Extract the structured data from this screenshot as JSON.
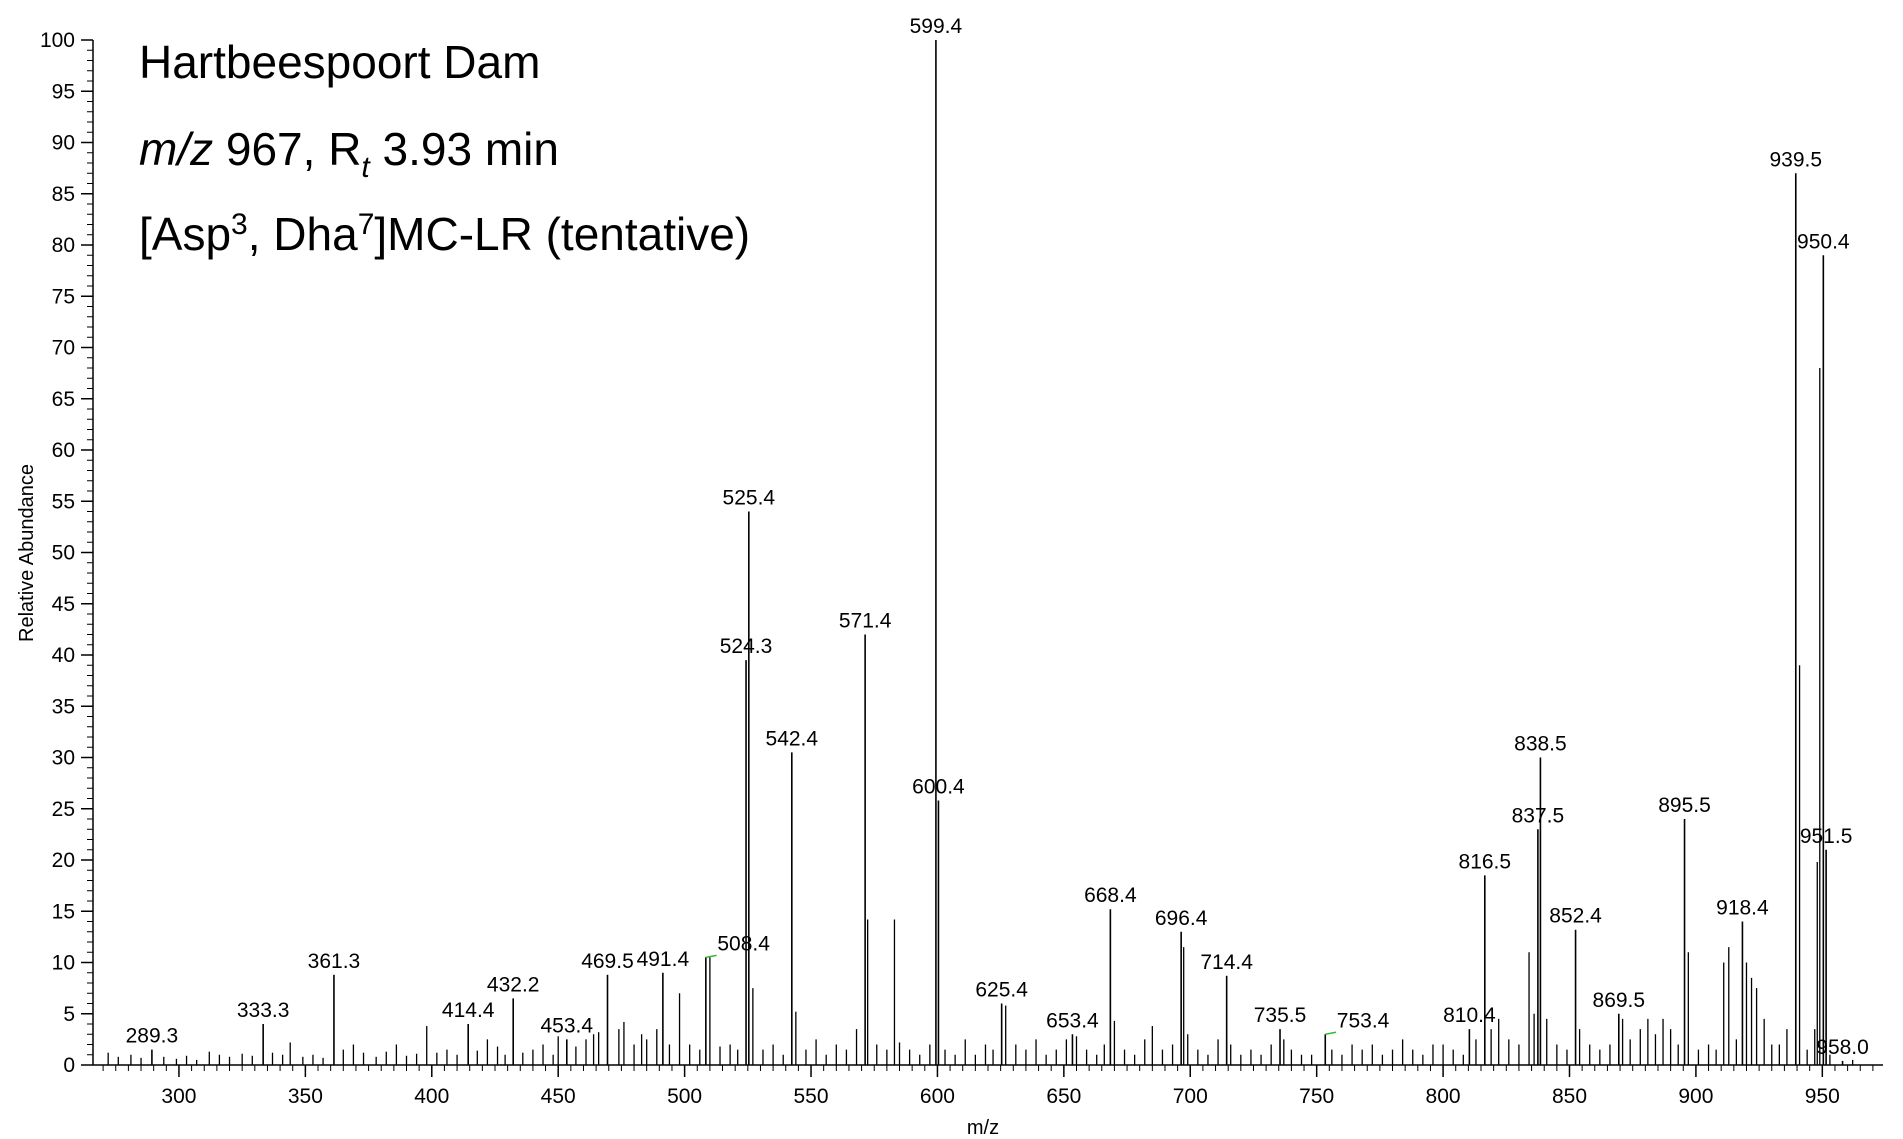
{
  "chart_data": {
    "type": "bar",
    "title_lines": {
      "line1": "Hartbeespoort Dam",
      "line2": {
        "mz_label": "m/z",
        "mz_value": " 967, R",
        "rt_sub": "t",
        "rt_value": " 3.93 min"
      },
      "line3": {
        "a": "[Asp",
        "a_sup": "3",
        "b": ", Dha",
        "b_sup": "7",
        "c": "]MC-LR (tentative)"
      }
    },
    "xlabel": "m/z",
    "ylabel": "Relative Abundance",
    "xlim": [
      266,
      974
    ],
    "ylim": [
      0,
      100
    ],
    "x_ticks": [
      300,
      350,
      400,
      450,
      500,
      550,
      600,
      650,
      700,
      750,
      800,
      850,
      900,
      950
    ],
    "y_ticks": [
      0,
      5,
      10,
      15,
      20,
      25,
      30,
      35,
      40,
      45,
      50,
      55,
      60,
      65,
      70,
      75,
      80,
      85,
      90,
      95,
      100
    ],
    "grid": false,
    "labeled_peaks": [
      {
        "mz": 289.3,
        "label": "289.3",
        "intensity": 1.5
      },
      {
        "mz": 333.3,
        "label": "333.3",
        "intensity": 4.0
      },
      {
        "mz": 361.3,
        "label": "361.3",
        "intensity": 8.8
      },
      {
        "mz": 414.4,
        "label": "414.4",
        "intensity": 4.0
      },
      {
        "mz": 432.2,
        "label": "432.2",
        "intensity": 6.5
      },
      {
        "mz": 453.4,
        "label": "453.4",
        "intensity": 2.5
      },
      {
        "mz": 469.5,
        "label": "469.5",
        "intensity": 8.8
      },
      {
        "mz": 491.4,
        "label": "491.4",
        "intensity": 9.0
      },
      {
        "mz": 508.4,
        "label": "508.4",
        "intensity": 10.5
      },
      {
        "mz": 524.3,
        "label": "524.3",
        "intensity": 39.5
      },
      {
        "mz": 525.4,
        "label": "525.4",
        "intensity": 54.0
      },
      {
        "mz": 542.4,
        "label": "542.4",
        "intensity": 30.5
      },
      {
        "mz": 571.4,
        "label": "571.4",
        "intensity": 42.0
      },
      {
        "mz": 599.4,
        "label": "599.4",
        "intensity": 100.0
      },
      {
        "mz": 600.4,
        "label": "600.4",
        "intensity": 25.8
      },
      {
        "mz": 625.4,
        "label": "625.4",
        "intensity": 6.0
      },
      {
        "mz": 653.4,
        "label": "653.4",
        "intensity": 3.0
      },
      {
        "mz": 668.4,
        "label": "668.4",
        "intensity": 15.2
      },
      {
        "mz": 696.4,
        "label": "696.4",
        "intensity": 13.0
      },
      {
        "mz": 714.4,
        "label": "714.4",
        "intensity": 8.7
      },
      {
        "mz": 735.5,
        "label": "735.5",
        "intensity": 3.5
      },
      {
        "mz": 753.4,
        "label": "753.4",
        "intensity": 3.0
      },
      {
        "mz": 810.4,
        "label": "810.4",
        "intensity": 3.5
      },
      {
        "mz": 816.5,
        "label": "816.5",
        "intensity": 18.5
      },
      {
        "mz": 837.5,
        "label": "837.5",
        "intensity": 23.0
      },
      {
        "mz": 838.5,
        "label": "838.5",
        "intensity": 30.0
      },
      {
        "mz": 852.4,
        "label": "852.4",
        "intensity": 13.2
      },
      {
        "mz": 869.5,
        "label": "869.5",
        "intensity": 5.0
      },
      {
        "mz": 895.5,
        "label": "895.5",
        "intensity": 24.0
      },
      {
        "mz": 918.4,
        "label": "918.4",
        "intensity": 14.0
      },
      {
        "mz": 939.5,
        "label": "939.5",
        "intensity": 87.0
      },
      {
        "mz": 950.4,
        "label": "950.4",
        "intensity": 79.0
      },
      {
        "mz": 951.5,
        "label": "951.5",
        "intensity": 21.0
      },
      {
        "mz": 958.0,
        "label": "958.0",
        "intensity": 0.4
      }
    ],
    "other_peaks": [
      {
        "mz": 272,
        "intensity": 1.2
      },
      {
        "mz": 276,
        "intensity": 0.8
      },
      {
        "mz": 281,
        "intensity": 1.0
      },
      {
        "mz": 285,
        "intensity": 0.7
      },
      {
        "mz": 294,
        "intensity": 0.8
      },
      {
        "mz": 299,
        "intensity": 0.6
      },
      {
        "mz": 303,
        "intensity": 0.9
      },
      {
        "mz": 307,
        "intensity": 0.5
      },
      {
        "mz": 312,
        "intensity": 1.3
      },
      {
        "mz": 316,
        "intensity": 1.0
      },
      {
        "mz": 320,
        "intensity": 0.8
      },
      {
        "mz": 325,
        "intensity": 1.1
      },
      {
        "mz": 329,
        "intensity": 0.9
      },
      {
        "mz": 337,
        "intensity": 1.2
      },
      {
        "mz": 341,
        "intensity": 1.0
      },
      {
        "mz": 344,
        "intensity": 2.2
      },
      {
        "mz": 349,
        "intensity": 0.8
      },
      {
        "mz": 353,
        "intensity": 1.0
      },
      {
        "mz": 357,
        "intensity": 0.7
      },
      {
        "mz": 365,
        "intensity": 1.5
      },
      {
        "mz": 369,
        "intensity": 2.0
      },
      {
        "mz": 373,
        "intensity": 1.2
      },
      {
        "mz": 378,
        "intensity": 0.8
      },
      {
        "mz": 382,
        "intensity": 1.3
      },
      {
        "mz": 386,
        "intensity": 2.0
      },
      {
        "mz": 390,
        "intensity": 0.9
      },
      {
        "mz": 394,
        "intensity": 1.1
      },
      {
        "mz": 398,
        "intensity": 3.8
      },
      {
        "mz": 402,
        "intensity": 1.2
      },
      {
        "mz": 406,
        "intensity": 1.5
      },
      {
        "mz": 410,
        "intensity": 1.0
      },
      {
        "mz": 418,
        "intensity": 1.4
      },
      {
        "mz": 422,
        "intensity": 2.5
      },
      {
        "mz": 426,
        "intensity": 1.8
      },
      {
        "mz": 429,
        "intensity": 1.0
      },
      {
        "mz": 436,
        "intensity": 1.2
      },
      {
        "mz": 440,
        "intensity": 1.5
      },
      {
        "mz": 444,
        "intensity": 2.0
      },
      {
        "mz": 448,
        "intensity": 1.0
      },
      {
        "mz": 450,
        "intensity": 2.8
      },
      {
        "mz": 457,
        "intensity": 1.8
      },
      {
        "mz": 461,
        "intensity": 2.5
      },
      {
        "mz": 464,
        "intensity": 3.0
      },
      {
        "mz": 466,
        "intensity": 3.2
      },
      {
        "mz": 474,
        "intensity": 3.5
      },
      {
        "mz": 476,
        "intensity": 4.2
      },
      {
        "mz": 480,
        "intensity": 2.0
      },
      {
        "mz": 483,
        "intensity": 3.0
      },
      {
        "mz": 485,
        "intensity": 2.5
      },
      {
        "mz": 489,
        "intensity": 3.5
      },
      {
        "mz": 494,
        "intensity": 2.0
      },
      {
        "mz": 498,
        "intensity": 7.0
      },
      {
        "mz": 502,
        "intensity": 2.0
      },
      {
        "mz": 506,
        "intensity": 1.5
      },
      {
        "mz": 510,
        "intensity": 10.5
      },
      {
        "mz": 514,
        "intensity": 1.8
      },
      {
        "mz": 518,
        "intensity": 2.0
      },
      {
        "mz": 521,
        "intensity": 1.5
      },
      {
        "mz": 527,
        "intensity": 7.5
      },
      {
        "mz": 531,
        "intensity": 1.5
      },
      {
        "mz": 535,
        "intensity": 2.0
      },
      {
        "mz": 539,
        "intensity": 1.0
      },
      {
        "mz": 544,
        "intensity": 5.2
      },
      {
        "mz": 548,
        "intensity": 1.5
      },
      {
        "mz": 552,
        "intensity": 2.5
      },
      {
        "mz": 556,
        "intensity": 1.0
      },
      {
        "mz": 560,
        "intensity": 2.0
      },
      {
        "mz": 564,
        "intensity": 1.5
      },
      {
        "mz": 568,
        "intensity": 3.5
      },
      {
        "mz": 572.4,
        "intensity": 14.2
      },
      {
        "mz": 576,
        "intensity": 2.0
      },
      {
        "mz": 580,
        "intensity": 1.5
      },
      {
        "mz": 583,
        "intensity": 14.2
      },
      {
        "mz": 585,
        "intensity": 2.2
      },
      {
        "mz": 589,
        "intensity": 1.5
      },
      {
        "mz": 593,
        "intensity": 1.0
      },
      {
        "mz": 597,
        "intensity": 2.0
      },
      {
        "mz": 603,
        "intensity": 1.5
      },
      {
        "mz": 607,
        "intensity": 1.0
      },
      {
        "mz": 611,
        "intensity": 2.5
      },
      {
        "mz": 615,
        "intensity": 1.0
      },
      {
        "mz": 619,
        "intensity": 2.0
      },
      {
        "mz": 622,
        "intensity": 1.5
      },
      {
        "mz": 627,
        "intensity": 5.8
      },
      {
        "mz": 631,
        "intensity": 2.0
      },
      {
        "mz": 635,
        "intensity": 1.5
      },
      {
        "mz": 639,
        "intensity": 2.5
      },
      {
        "mz": 643,
        "intensity": 1.0
      },
      {
        "mz": 647,
        "intensity": 1.5
      },
      {
        "mz": 651,
        "intensity": 2.5
      },
      {
        "mz": 655,
        "intensity": 2.8
      },
      {
        "mz": 659,
        "intensity": 1.5
      },
      {
        "mz": 663,
        "intensity": 1.0
      },
      {
        "mz": 666,
        "intensity": 2.0
      },
      {
        "mz": 670,
        "intensity": 4.3
      },
      {
        "mz": 674,
        "intensity": 1.5
      },
      {
        "mz": 678,
        "intensity": 1.0
      },
      {
        "mz": 682,
        "intensity": 2.5
      },
      {
        "mz": 685,
        "intensity": 3.8
      },
      {
        "mz": 689,
        "intensity": 1.5
      },
      {
        "mz": 693,
        "intensity": 2.0
      },
      {
        "mz": 697.4,
        "intensity": 11.5
      },
      {
        "mz": 699,
        "intensity": 3.0
      },
      {
        "mz": 703,
        "intensity": 1.5
      },
      {
        "mz": 707,
        "intensity": 1.0
      },
      {
        "mz": 711,
        "intensity": 2.5
      },
      {
        "mz": 716,
        "intensity": 2.0
      },
      {
        "mz": 720,
        "intensity": 1.0
      },
      {
        "mz": 724,
        "intensity": 1.5
      },
      {
        "mz": 728,
        "intensity": 1.0
      },
      {
        "mz": 732,
        "intensity": 2.0
      },
      {
        "mz": 737,
        "intensity": 2.5
      },
      {
        "mz": 740,
        "intensity": 1.5
      },
      {
        "mz": 744,
        "intensity": 1.0
      },
      {
        "mz": 748,
        "intensity": 1.0
      },
      {
        "mz": 756,
        "intensity": 1.5
      },
      {
        "mz": 760,
        "intensity": 1.0
      },
      {
        "mz": 764,
        "intensity": 2.0
      },
      {
        "mz": 768,
        "intensity": 1.5
      },
      {
        "mz": 772,
        "intensity": 2.0
      },
      {
        "mz": 776,
        "intensity": 1.0
      },
      {
        "mz": 780,
        "intensity": 1.5
      },
      {
        "mz": 784,
        "intensity": 2.5
      },
      {
        "mz": 788,
        "intensity": 1.5
      },
      {
        "mz": 792,
        "intensity": 1.0
      },
      {
        "mz": 796,
        "intensity": 2.0
      },
      {
        "mz": 800,
        "intensity": 2.0
      },
      {
        "mz": 804,
        "intensity": 1.5
      },
      {
        "mz": 808,
        "intensity": 1.0
      },
      {
        "mz": 813,
        "intensity": 2.5
      },
      {
        "mz": 819,
        "intensity": 3.5
      },
      {
        "mz": 822,
        "intensity": 4.5
      },
      {
        "mz": 826,
        "intensity": 2.5
      },
      {
        "mz": 830,
        "intensity": 2.0
      },
      {
        "mz": 834,
        "intensity": 11.0
      },
      {
        "mz": 836,
        "intensity": 5.0
      },
      {
        "mz": 841,
        "intensity": 4.5
      },
      {
        "mz": 845,
        "intensity": 2.0
      },
      {
        "mz": 849,
        "intensity": 1.5
      },
      {
        "mz": 854,
        "intensity": 3.5
      },
      {
        "mz": 858,
        "intensity": 2.0
      },
      {
        "mz": 862,
        "intensity": 1.5
      },
      {
        "mz": 866,
        "intensity": 2.0
      },
      {
        "mz": 871,
        "intensity": 4.5
      },
      {
        "mz": 874,
        "intensity": 2.5
      },
      {
        "mz": 878,
        "intensity": 3.5
      },
      {
        "mz": 881,
        "intensity": 4.5
      },
      {
        "mz": 884,
        "intensity": 3.0
      },
      {
        "mz": 887,
        "intensity": 4.5
      },
      {
        "mz": 890,
        "intensity": 3.5
      },
      {
        "mz": 893,
        "intensity": 2.0
      },
      {
        "mz": 897,
        "intensity": 11.0
      },
      {
        "mz": 901,
        "intensity": 1.5
      },
      {
        "mz": 905,
        "intensity": 2.0
      },
      {
        "mz": 908,
        "intensity": 1.5
      },
      {
        "mz": 911,
        "intensity": 10.0
      },
      {
        "mz": 913,
        "intensity": 11.5
      },
      {
        "mz": 916,
        "intensity": 2.5
      },
      {
        "mz": 920,
        "intensity": 10.0
      },
      {
        "mz": 922,
        "intensity": 8.5
      },
      {
        "mz": 924,
        "intensity": 7.5
      },
      {
        "mz": 927,
        "intensity": 4.5
      },
      {
        "mz": 930,
        "intensity": 2.0
      },
      {
        "mz": 933,
        "intensity": 2.0
      },
      {
        "mz": 936,
        "intensity": 3.5
      },
      {
        "mz": 941,
        "intensity": 39.0
      },
      {
        "mz": 944,
        "intensity": 1.5
      },
      {
        "mz": 947,
        "intensity": 3.5
      },
      {
        "mz": 948,
        "intensity": 19.8
      },
      {
        "mz": 949,
        "intensity": 68.0
      },
      {
        "mz": 953,
        "intensity": 1.0
      },
      {
        "mz": 962,
        "intensity": 0.5
      }
    ],
    "line_color": "#000000",
    "leader_color": "#33bb33"
  }
}
